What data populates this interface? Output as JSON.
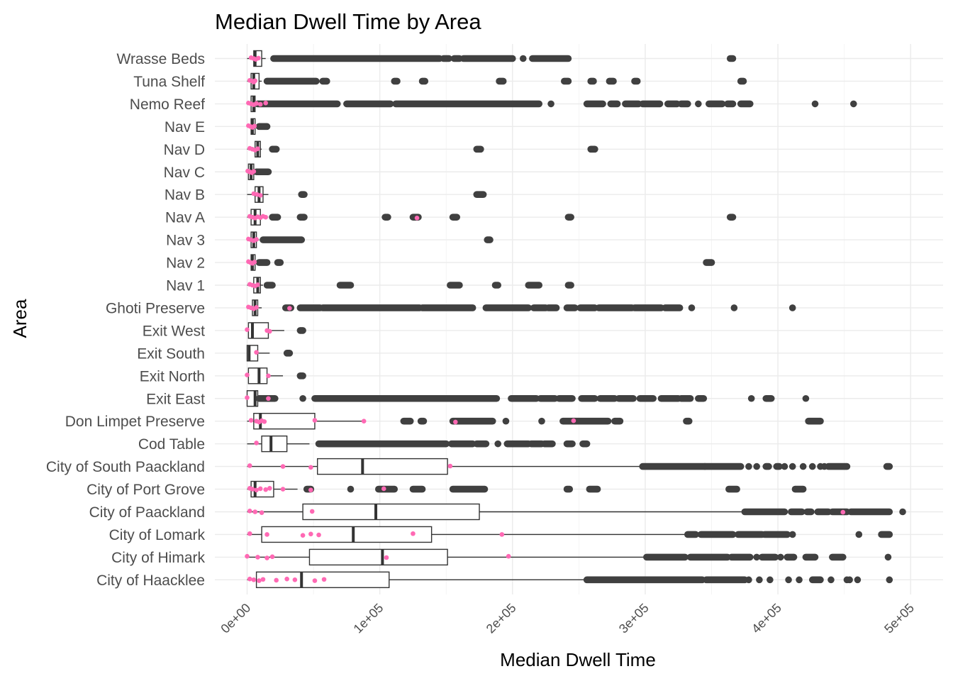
{
  "chart_data": {
    "type": "boxplot",
    "title": "Median Dwell Time by Area",
    "xlabel": "Median Dwell Time",
    "ylabel": "Area",
    "xlim": [
      -8000,
      510000
    ],
    "x_ticks": [
      {
        "value": 0,
        "label": "0e+00"
      },
      {
        "value": 100000,
        "label": "1e+05"
      },
      {
        "value": 200000,
        "label": "2e+05"
      },
      {
        "value": 300000,
        "label": "3e+05"
      },
      {
        "value": 400000,
        "label": "4e+05"
      },
      {
        "value": 500000,
        "label": "5e+05"
      }
    ],
    "grid": true,
    "legend": "none",
    "colors": {
      "box": "#333333",
      "outlier": "#404040",
      "jitter": "#ff69b4",
      "grid": "#ebebeb"
    },
    "categories": [
      {
        "area": "Wrasse Beds",
        "box": [
          0,
          5000,
          6000,
          11000,
          14000
        ],
        "outliers": [
          [
            20000,
            145000
          ],
          [
            148000,
            152000
          ],
          [
            156000,
            160000
          ],
          [
            163000,
            200000
          ],
          [
            208000
          ],
          [
            215000,
            242000
          ],
          [
            364000,
            366000
          ]
        ],
        "jitter": [
          3000,
          5000,
          6500,
          8500
        ]
      },
      {
        "area": "Tuna Shelf",
        "box": [
          0,
          3000,
          5000,
          9000,
          11000
        ],
        "outliers": [
          [
            15000,
            52000
          ],
          [
            57000,
            60000
          ],
          [
            111000,
            113000
          ],
          [
            132000,
            134000
          ],
          [
            190000,
            193000
          ],
          [
            239000,
            242000
          ],
          [
            259000,
            261000
          ],
          [
            273000,
            276000
          ],
          [
            292000,
            294000
          ],
          [
            372000,
            374000
          ]
        ],
        "jitter": [
          2000,
          4000,
          5000,
          6000
        ]
      },
      {
        "area": "Nemo Reef",
        "box": [
          0,
          3000,
          5000,
          6000,
          7000
        ],
        "outliers": [
          [
            8000,
            68000
          ],
          [
            75000,
            108000
          ],
          [
            112000,
            220000
          ],
          [
            229000
          ],
          [
            256000,
            268000
          ],
          [
            274000,
            279000
          ],
          [
            285000,
            295000
          ],
          [
            298000,
            311000
          ],
          [
            317000,
            324000
          ],
          [
            327000,
            332000
          ],
          [
            340000
          ],
          [
            348000,
            358000
          ],
          [
            362000,
            366000
          ],
          [
            372000,
            379000
          ],
          [
            428000
          ],
          [
            457000
          ]
        ],
        "jitter": [
          1000,
          3000,
          5000,
          7000,
          10000,
          14000
        ]
      },
      {
        "area": "Nav E",
        "box": [
          0,
          3000,
          4000,
          6000,
          8000
        ],
        "outliers": [
          [
            9000,
            15000
          ]
        ],
        "jitter": [
          1000,
          2500,
          4000,
          5500
        ]
      },
      {
        "area": "Nav D",
        "box": [
          0,
          6000,
          8000,
          10000,
          11000
        ],
        "outliers": [
          [
            19000,
            22000
          ],
          [
            173000,
            176000
          ],
          [
            259000,
            262000
          ]
        ],
        "jitter": [
          2000,
          4000,
          6000,
          8000
        ]
      },
      {
        "area": "Nav C",
        "box": [
          0,
          1000,
          3000,
          5000,
          6000
        ],
        "outliers": [
          [
            7000,
            16000
          ]
        ],
        "jitter": [
          500,
          2000,
          3500,
          5000
        ]
      },
      {
        "area": "Nav B",
        "box": [
          0,
          6000,
          9000,
          12000,
          16000
        ],
        "outliers": [
          [
            41000,
            43000
          ],
          [
            173000,
            178000
          ]
        ],
        "jitter": [
          5000,
          7500,
          10000
        ]
      },
      {
        "area": "Nav A",
        "box": [
          0,
          3000,
          6000,
          10000,
          12000
        ],
        "outliers": [
          [
            19000,
            23000
          ],
          [
            40000,
            43000
          ],
          [
            104000,
            106000
          ],
          [
            125000,
            129000
          ],
          [
            155000,
            158000
          ],
          [
            242000,
            244000
          ],
          [
            364000,
            366000
          ]
        ],
        "jitter": [
          2000,
          4000,
          6000,
          8000,
          10000,
          12000,
          14000,
          128000
        ]
      },
      {
        "area": "Nav 3",
        "box": [
          0,
          3000,
          5000,
          7000,
          9000
        ],
        "outliers": [
          [
            12000,
            41000
          ],
          [
            181000,
            183000
          ]
        ],
        "jitter": [
          1000,
          3000,
          5000,
          7000
        ]
      },
      {
        "area": "Nav 2",
        "box": [
          0,
          3000,
          4000,
          6000,
          8000
        ],
        "outliers": [
          [
            9000,
            15000
          ],
          [
            23000,
            25000
          ],
          [
            346000,
            350000
          ]
        ],
        "jitter": [
          1000,
          2500,
          4000,
          5500
        ]
      },
      {
        "area": "Nav 1",
        "box": [
          0,
          5000,
          8000,
          10000,
          12000
        ],
        "outliers": [
          [
            15000,
            19000
          ],
          [
            70000,
            78000
          ],
          [
            153000,
            160000
          ],
          [
            187000,
            189000
          ],
          [
            212000,
            220000
          ],
          [
            242000,
            244000
          ]
        ],
        "jitter": [
          2000,
          4000,
          6000,
          8000
        ]
      },
      {
        "area": "Ghoti Preserve",
        "box": [
          0,
          4000,
          6000,
          8000,
          11000
        ],
        "outliers": [
          [
            29000,
            33000
          ],
          [
            40000,
            55000
          ],
          [
            57000,
            130000
          ],
          [
            132000,
            170000
          ],
          [
            180000,
            212000
          ],
          [
            216000,
            225000
          ],
          [
            227000,
            233000
          ],
          [
            241000,
            247000
          ],
          [
            251000,
            262000
          ],
          [
            265000,
            290000
          ],
          [
            292000,
            312000
          ],
          [
            315000,
            326000
          ],
          [
            335000
          ],
          [
            367000
          ],
          [
            411000
          ]
        ],
        "jitter": [
          1000,
          3000,
          5000,
          7000,
          32000
        ]
      },
      {
        "area": "Exit West",
        "box": [
          0,
          1000,
          4000,
          16000,
          28000
        ],
        "outliers": [
          [
            40000,
            42000
          ]
        ],
        "jitter": [
          0,
          15000,
          17000
        ]
      },
      {
        "area": "Exit South",
        "box": [
          0,
          0,
          1500,
          8000,
          17000
        ],
        "outliers": [
          [
            30000,
            32000
          ]
        ],
        "jitter": [
          7000
        ]
      },
      {
        "area": "Exit North",
        "box": [
          0,
          1000,
          9000,
          15000,
          27000
        ],
        "outliers": [
          [
            40000,
            42000
          ]
        ],
        "jitter": [
          0,
          16000
        ]
      },
      {
        "area": "Exit East",
        "box": [
          0,
          0,
          6000,
          8000,
          8500
        ],
        "outliers": [
          [
            9000,
            21000
          ],
          [
            42000
          ],
          [
            51000,
            188000
          ],
          [
            199000,
            218000
          ],
          [
            221000,
            232000
          ],
          [
            235000,
            245000
          ],
          [
            252000,
            262000
          ],
          [
            266000,
            277000
          ],
          [
            280000,
            291000
          ],
          [
            296000,
            306000
          ],
          [
            312000,
            325000
          ],
          [
            327000,
            334000
          ],
          [
            340000,
            344000
          ],
          [
            380000
          ],
          [
            391000,
            395000
          ],
          [
            421000
          ]
        ],
        "jitter": [
          0,
          16000
        ]
      },
      {
        "area": "Don Limpet Preserve",
        "box": [
          0,
          5000,
          10000,
          51000,
          88000
        ],
        "outliers": [
          [
            118000,
            123000
          ],
          [
            131000,
            133000
          ],
          [
            155000,
            185000
          ],
          [
            195000
          ],
          [
            222000
          ],
          [
            238000,
            272000
          ],
          [
            277000,
            281000
          ],
          [
            331000,
            333000
          ],
          [
            423000,
            432000
          ]
        ],
        "jitter": [
          3000,
          7000,
          9000,
          11000,
          13000,
          51000,
          88000,
          157000,
          246000
        ]
      },
      {
        "area": "Cod Table",
        "box": [
          0,
          11000,
          18000,
          30000,
          47000
        ],
        "outliers": [
          [
            54000,
            150000
          ],
          [
            154000,
            170000
          ],
          [
            173000,
            180000
          ],
          [
            189000
          ],
          [
            196000,
            212000
          ],
          [
            214000,
            222000
          ],
          [
            224000,
            230000
          ],
          [
            241000,
            245000
          ],
          [
            253000,
            256000
          ]
        ],
        "jitter": [
          7000
        ]
      },
      {
        "area": "City of South Paackland",
        "box": [
          0,
          53000,
          87000,
          151000,
          298000
        ],
        "outliers": [
          [
            298000,
            345000
          ],
          [
            345000,
            372000
          ],
          [
            378000
          ],
          [
            384000
          ],
          [
            391000,
            393000
          ],
          [
            399000,
            401000
          ],
          [
            405000
          ],
          [
            411000
          ],
          [
            419000
          ],
          [
            426000
          ],
          [
            432000
          ],
          [
            435000
          ],
          [
            438000,
            452000
          ],
          [
            482000,
            484000
          ]
        ],
        "jitter": [
          2000,
          27000,
          48000,
          153000
        ]
      },
      {
        "area": "City of Port Grove",
        "box": [
          0,
          3000,
          6000,
          20000,
          38000
        ],
        "outliers": [
          [
            45000,
            48000
          ],
          [
            78000
          ],
          [
            99000,
            111000
          ],
          [
            125000,
            132000
          ],
          [
            155000,
            179000
          ],
          [
            241000,
            243000
          ],
          [
            258000,
            264000
          ],
          [
            363000,
            369000
          ],
          [
            413000,
            419000
          ]
        ],
        "jitter": [
          2000,
          4000,
          7000,
          10000,
          14000,
          17000,
          27000,
          48000,
          103000
        ]
      },
      {
        "area": "City of Paackland",
        "box": [
          0,
          42000,
          97000,
          175000,
          375000
        ],
        "outliers": [
          [
            375000,
            405000
          ],
          [
            410000,
            418000
          ],
          [
            422000,
            425000
          ],
          [
            430000,
            438000
          ],
          [
            441000,
            452000
          ],
          [
            455000,
            484000
          ],
          [
            494000
          ]
        ],
        "jitter": [
          2000,
          6000,
          11000,
          49000,
          449000
        ]
      },
      {
        "area": "City of Lomark",
        "box": [
          0,
          11000,
          80000,
          139000,
          332000
        ],
        "outliers": [
          [
            332000,
            338000
          ],
          [
            342000,
            366000
          ],
          [
            370000,
            388000
          ],
          [
            390000,
            407000
          ],
          [
            411000
          ],
          [
            461000
          ],
          [
            478000,
            484000
          ]
        ],
        "jitter": [
          2000,
          15000,
          42000,
          48000,
          54000,
          125000,
          192000
        ]
      },
      {
        "area": "City of Himark",
        "box": [
          0,
          47000,
          102000,
          151000,
          301000
        ],
        "outliers": [
          [
            301000,
            330000
          ],
          [
            334000,
            362000
          ],
          [
            365000,
            379000
          ],
          [
            384000
          ],
          [
            388000,
            398000
          ],
          [
            402000
          ],
          [
            407000,
            412000
          ],
          [
            421000,
            428000
          ],
          [
            441000,
            449000
          ],
          [
            483000
          ]
        ],
        "jitter": [
          0,
          8000,
          15000,
          19000,
          105000,
          197000
        ]
      },
      {
        "area": "City of Haacklee",
        "box": [
          0,
          7000,
          41000,
          107000,
          256000
        ],
        "outliers": [
          [
            256000,
            343000
          ],
          [
            346000,
            375000
          ],
          [
            378000
          ],
          [
            386000
          ],
          [
            394000
          ],
          [
            408000
          ],
          [
            416000
          ],
          [
            426000,
            432000
          ],
          [
            440000
          ],
          [
            452000
          ],
          [
            454000
          ],
          [
            460000
          ],
          [
            484000
          ]
        ],
        "jitter": [
          2000,
          5000,
          9000,
          12000,
          22000,
          30000,
          36000,
          51000,
          58000
        ]
      }
    ]
  }
}
